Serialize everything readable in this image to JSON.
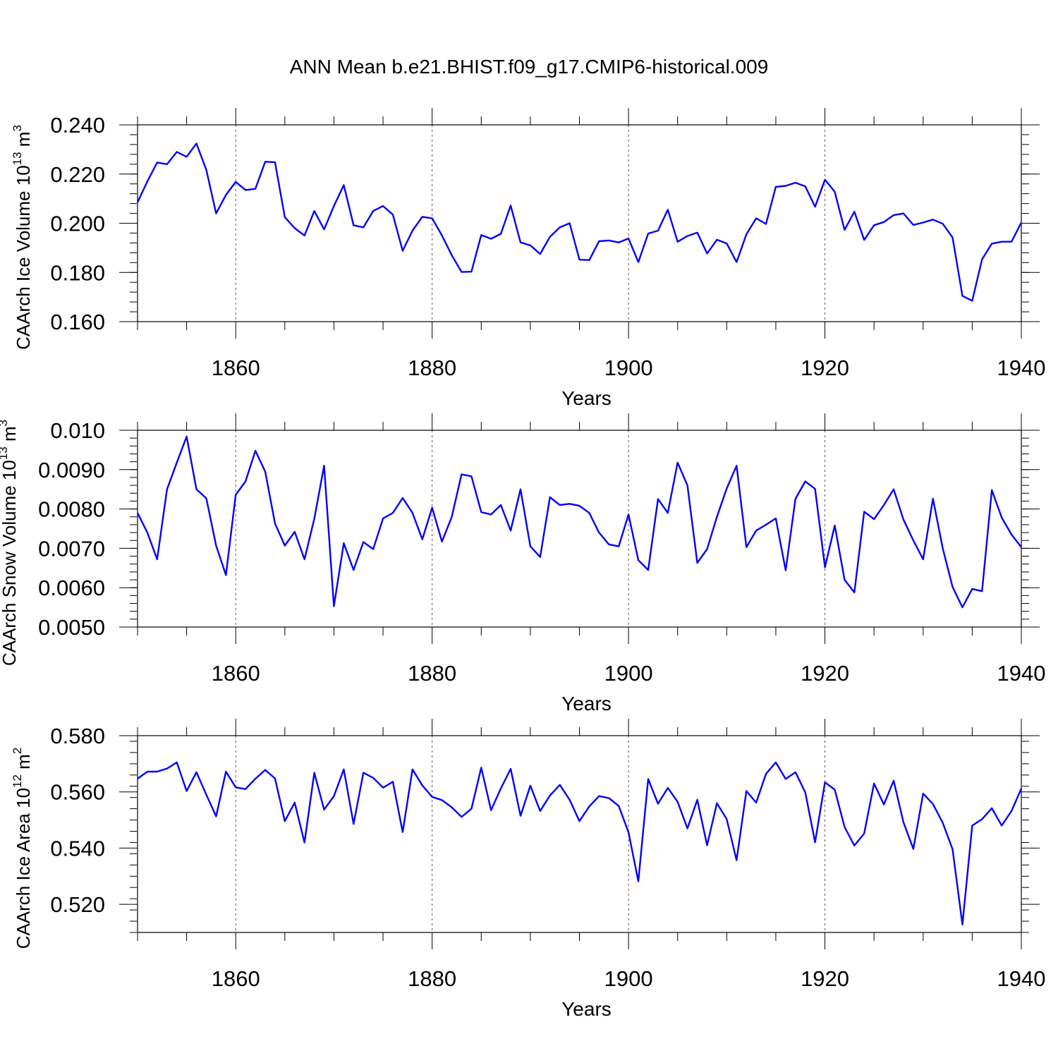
{
  "title": "ANN Mean b.e21.BHIST.f09_g17.CMIP6-historical.009",
  "line_color": "#0000ff",
  "chart_data": [
    {
      "type": "line",
      "ylabel_main": "CAArch Ice Volume 10",
      "ylabel_sup": "13",
      "ylabel_unit": " m",
      "ylabel_unit_sup": "3",
      "xlabel": "Years",
      "xlim": [
        1850,
        1940
      ],
      "ylim": [
        0.16,
        0.24
      ],
      "x_ticks": [
        1860,
        1880,
        1900,
        1920,
        1940
      ],
      "y_ticks": [
        "0.160",
        "0.180",
        "0.200",
        "0.220",
        "0.240"
      ],
      "y_minor_step": 0.004,
      "x_minor_step": 5,
      "series": [
        {
          "x_start": 1850,
          "values": [
            0.2085,
            0.217,
            0.2247,
            0.224,
            0.229,
            0.227,
            0.2324,
            0.2217,
            0.204,
            0.2115,
            0.2168,
            0.2135,
            0.214,
            0.225,
            0.2248,
            0.2025,
            0.198,
            0.195,
            0.205,
            0.1975,
            0.207,
            0.2155,
            0.1992,
            0.1983,
            0.205,
            0.207,
            0.2035,
            0.1888,
            0.197,
            0.2026,
            0.202,
            0.195,
            0.187,
            0.1802,
            0.1803,
            0.1952,
            0.1937,
            0.1957,
            0.2072,
            0.1922,
            0.191,
            0.1875,
            0.1945,
            0.1983,
            0.2,
            0.1852,
            0.185,
            0.1927,
            0.193,
            0.1922,
            0.1938,
            0.1842,
            0.1958,
            0.197,
            0.2055,
            0.1925,
            0.1948,
            0.1962,
            0.1877,
            0.1933,
            0.1918,
            0.1842,
            0.1955,
            0.202,
            0.1997,
            0.2148,
            0.2152,
            0.2165,
            0.215,
            0.2067,
            0.2177,
            0.2128,
            0.1973,
            0.2047,
            0.1932,
            0.1992,
            0.2005,
            0.2033,
            0.204,
            0.1993,
            0.2003,
            0.2015,
            0.1998,
            0.1942,
            0.1705,
            0.1685,
            0.1853,
            0.1917,
            0.1925,
            0.1925,
            0.2003
          ]
        }
      ]
    },
    {
      "type": "line",
      "ylabel_main": "CAArch Snow Volume 10",
      "ylabel_sup": "13",
      "ylabel_unit": " m",
      "ylabel_unit_sup": "3",
      "xlabel": "Years",
      "xlim": [
        1850,
        1940
      ],
      "ylim": [
        0.005,
        0.01
      ],
      "x_ticks": [
        1860,
        1880,
        1900,
        1920,
        1940
      ],
      "y_ticks": [
        "0.0050",
        "0.0060",
        "0.0070",
        "0.0080",
        "0.0090",
        "0.010"
      ],
      "y_minor_step": 0.0002,
      "x_minor_step": 5,
      "series": [
        {
          "x_start": 1850,
          "values": [
            0.0079,
            0.0074,
            0.00672,
            0.0085,
            0.00918,
            0.00984,
            0.0085,
            0.00827,
            0.00707,
            0.00632,
            0.00836,
            0.0087,
            0.00948,
            0.00895,
            0.00763,
            0.00707,
            0.00742,
            0.00672,
            0.00775,
            0.0091,
            0.00553,
            0.00713,
            0.00645,
            0.00716,
            0.00698,
            0.00776,
            0.0079,
            0.00828,
            0.0079,
            0.00723,
            0.00803,
            0.00717,
            0.0078,
            0.00888,
            0.00883,
            0.00792,
            0.00786,
            0.0081,
            0.00745,
            0.0085,
            0.00705,
            0.00678,
            0.0083,
            0.0081,
            0.00813,
            0.00808,
            0.0079,
            0.0074,
            0.0071,
            0.00705,
            0.00786,
            0.0067,
            0.00645,
            0.00825,
            0.0079,
            0.00918,
            0.0086,
            0.00663,
            0.00698,
            0.0078,
            0.00852,
            0.0091,
            0.00703,
            0.00745,
            0.0076,
            0.00776,
            0.00644,
            0.00826,
            0.0087,
            0.00851,
            0.00652,
            0.00758,
            0.0062,
            0.00588,
            0.00793,
            0.00774,
            0.0081,
            0.0085,
            0.00773,
            0.0072,
            0.00672,
            0.00826,
            0.007,
            0.00602,
            0.0055,
            0.00597,
            0.00591,
            0.00848,
            0.00778,
            0.00735,
            0.00703
          ]
        }
      ]
    },
    {
      "type": "line",
      "ylabel_main": "CAArch Ice Area 10",
      "ylabel_sup": "12",
      "ylabel_unit": " m",
      "ylabel_unit_sup": "2",
      "xlabel": "Years",
      "xlim": [
        1850,
        1940
      ],
      "ylim": [
        0.51,
        0.58
      ],
      "x_ticks": [
        1860,
        1880,
        1900,
        1920,
        1940
      ],
      "y_ticks": [
        "0.520",
        "0.540",
        "0.560",
        "0.580"
      ],
      "y_minor_step": 0.004,
      "x_minor_step": 5,
      "series": [
        {
          "x_start": 1850,
          "values": [
            0.5647,
            0.5672,
            0.5672,
            0.5683,
            0.5705,
            0.5603,
            0.567,
            0.559,
            0.5513,
            0.5672,
            0.5616,
            0.561,
            0.5647,
            0.5678,
            0.5648,
            0.5496,
            0.5562,
            0.542,
            0.5668,
            0.5537,
            0.5585,
            0.568,
            0.5486,
            0.5668,
            0.565,
            0.5615,
            0.5636,
            0.5457,
            0.568,
            0.5623,
            0.5582,
            0.5571,
            0.5545,
            0.5511,
            0.554,
            0.5686,
            0.5535,
            0.5612,
            0.5682,
            0.5515,
            0.5622,
            0.5532,
            0.5587,
            0.5625,
            0.5572,
            0.5496,
            0.5548,
            0.5585,
            0.5578,
            0.555,
            0.5456,
            0.5282,
            0.5646,
            0.5558,
            0.5614,
            0.5565,
            0.547,
            0.5572,
            0.541,
            0.556,
            0.5503,
            0.5357,
            0.5603,
            0.5562,
            0.5664,
            0.5705,
            0.5646,
            0.567,
            0.5598,
            0.5421,
            0.5634,
            0.5608,
            0.5475,
            0.5409,
            0.5452,
            0.563,
            0.5555,
            0.564,
            0.5492,
            0.5397,
            0.5594,
            0.5557,
            0.549,
            0.5396,
            0.5128,
            0.548,
            0.5503,
            0.5542,
            0.548,
            0.5532,
            0.5612
          ]
        }
      ]
    }
  ]
}
